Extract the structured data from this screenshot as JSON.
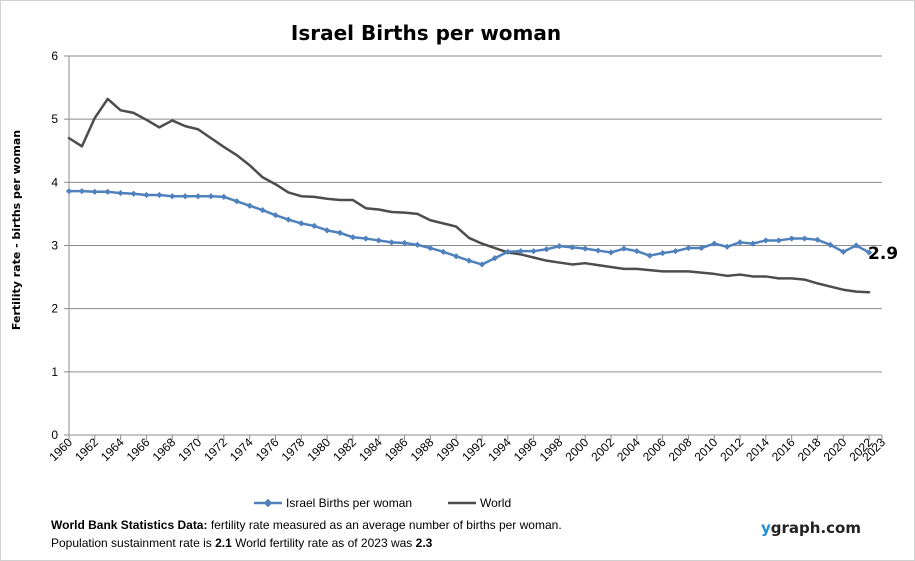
{
  "chart_data": {
    "type": "line",
    "title": "Israel Births per woman",
    "ylabel": "Fertility rate  - births per woman",
    "xlabel": "",
    "ylim": [
      0,
      6
    ],
    "yticks": [
      "0",
      "1",
      "2",
      "3",
      "4",
      "5",
      "6"
    ],
    "xlim": [
      1960,
      2023
    ],
    "xticks": [
      "1960",
      "1962",
      "1964",
      "1966",
      "1968",
      "1970",
      "1972",
      "1974",
      "1976",
      "1978",
      "1980",
      "1982",
      "1984",
      "1986",
      "1988",
      "1990",
      "1992",
      "1994",
      "1996",
      "1998",
      "2000",
      "2002",
      "2004",
      "2006",
      "2008",
      "2010",
      "2012",
      "2014",
      "2016",
      "2018",
      "2020",
      "2022",
      "2023"
    ],
    "grid": true,
    "legend_position": "bottom",
    "end_label": "2.9",
    "series": [
      {
        "name": "Israel Births per woman",
        "color": "#4f81bd",
        "marker": "diamond",
        "x": [
          1960,
          1961,
          1962,
          1963,
          1964,
          1965,
          1966,
          1967,
          1968,
          1969,
          1970,
          1971,
          1972,
          1973,
          1974,
          1975,
          1976,
          1977,
          1978,
          1979,
          1980,
          1981,
          1982,
          1983,
          1984,
          1985,
          1986,
          1987,
          1988,
          1989,
          1990,
          1991,
          1992,
          1993,
          1994,
          1995,
          1996,
          1997,
          1998,
          1999,
          2000,
          2001,
          2002,
          2003,
          2004,
          2005,
          2006,
          2007,
          2008,
          2009,
          2010,
          2011,
          2012,
          2013,
          2014,
          2015,
          2016,
          2017,
          2018,
          2019,
          2020,
          2021,
          2022
        ],
        "values": [
          3.86,
          3.86,
          3.85,
          3.85,
          3.83,
          3.82,
          3.8,
          3.8,
          3.78,
          3.78,
          3.78,
          3.78,
          3.77,
          3.7,
          3.63,
          3.56,
          3.48,
          3.41,
          3.35,
          3.31,
          3.24,
          3.2,
          3.13,
          3.11,
          3.08,
          3.05,
          3.04,
          3.01,
          2.96,
          2.9,
          2.83,
          2.76,
          2.7,
          2.8,
          2.9,
          2.91,
          2.91,
          2.94,
          2.99,
          2.97,
          2.95,
          2.92,
          2.89,
          2.95,
          2.91,
          2.84,
          2.88,
          2.91,
          2.96,
          2.96,
          3.03,
          2.98,
          3.05,
          3.03,
          3.08,
          3.08,
          3.11,
          3.11,
          3.09,
          3.01,
          2.9,
          3.0,
          2.89
        ]
      },
      {
        "name": "World",
        "color": "#4d4d4d",
        "marker": "none",
        "x": [
          1960,
          1961,
          1962,
          1963,
          1964,
          1965,
          1966,
          1967,
          1968,
          1969,
          1970,
          1971,
          1972,
          1973,
          1974,
          1975,
          1976,
          1977,
          1978,
          1979,
          1980,
          1981,
          1982,
          1983,
          1984,
          1985,
          1986,
          1987,
          1988,
          1989,
          1990,
          1991,
          1992,
          1993,
          1994,
          1995,
          1996,
          1997,
          1998,
          1999,
          2000,
          2001,
          2002,
          2003,
          2004,
          2005,
          2006,
          2007,
          2008,
          2009,
          2010,
          2011,
          2012,
          2013,
          2014,
          2015,
          2016,
          2017,
          2018,
          2019,
          2020,
          2021,
          2022
        ],
        "values": [
          4.7,
          4.57,
          5.02,
          5.32,
          5.14,
          5.1,
          4.99,
          4.87,
          4.98,
          4.89,
          4.84,
          4.7,
          4.56,
          4.43,
          4.27,
          4.08,
          3.97,
          3.84,
          3.78,
          3.77,
          3.74,
          3.72,
          3.72,
          3.59,
          3.57,
          3.53,
          3.52,
          3.5,
          3.4,
          3.35,
          3.3,
          3.12,
          3.03,
          2.96,
          2.89,
          2.86,
          2.81,
          2.76,
          2.73,
          2.7,
          2.72,
          2.69,
          2.66,
          2.63,
          2.63,
          2.61,
          2.59,
          2.59,
          2.59,
          2.57,
          2.55,
          2.52,
          2.54,
          2.51,
          2.51,
          2.48,
          2.48,
          2.46,
          2.4,
          2.35,
          2.3,
          2.27,
          2.26
        ]
      }
    ]
  },
  "footer": {
    "line1_bold": "World Bank Statistics Data:",
    "line1_rest": " fertility rate measured as an average number  of births per woman.",
    "line2_a": "Population sustainment rate is ",
    "line2_b": "2.1",
    "line2_c": "    World fertility rate as of 2023 was ",
    "line2_d": "2.3"
  },
  "brand": {
    "y": "y",
    "rest": "graph.com"
  }
}
